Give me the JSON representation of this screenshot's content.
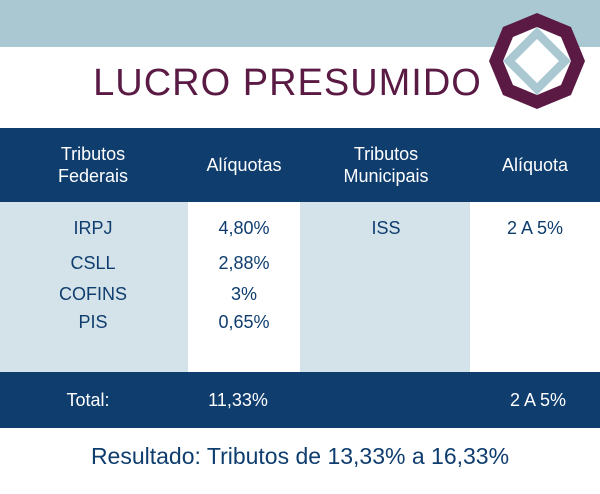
{
  "title": "LUCRO PRESUMIDO",
  "header": {
    "col1": "Tributos\nFederais",
    "col2": "Alíquotas",
    "col3": "Tributos\nMunicipais",
    "col4": "Alíquota"
  },
  "federal": {
    "rows": [
      {
        "name": "IRPJ",
        "rate": "4,80%"
      },
      {
        "name": "CSLL",
        "rate": "2,88%"
      },
      {
        "name": "COFINS",
        "rate": "3%"
      },
      {
        "name": "PIS",
        "rate": "0,65%"
      }
    ]
  },
  "municipal": {
    "rows": [
      {
        "name": "ISS",
        "rate": "2 A 5%"
      }
    ]
  },
  "total": {
    "label": "Total:",
    "federal": "11,33%",
    "municipal": "2 A 5%"
  },
  "result": "Resultado: Tributos de 13,33% a 16,33%",
  "colors": {
    "navy": "#0e3d6e",
    "light_blue": "#d4e2e9",
    "top_band": "#a9c8d2",
    "title": "#5a1a44",
    "logo_purple": "#5a1a44",
    "logo_inner": "#a9c8d2"
  },
  "logo_icon": "octagon-emblem-icon"
}
